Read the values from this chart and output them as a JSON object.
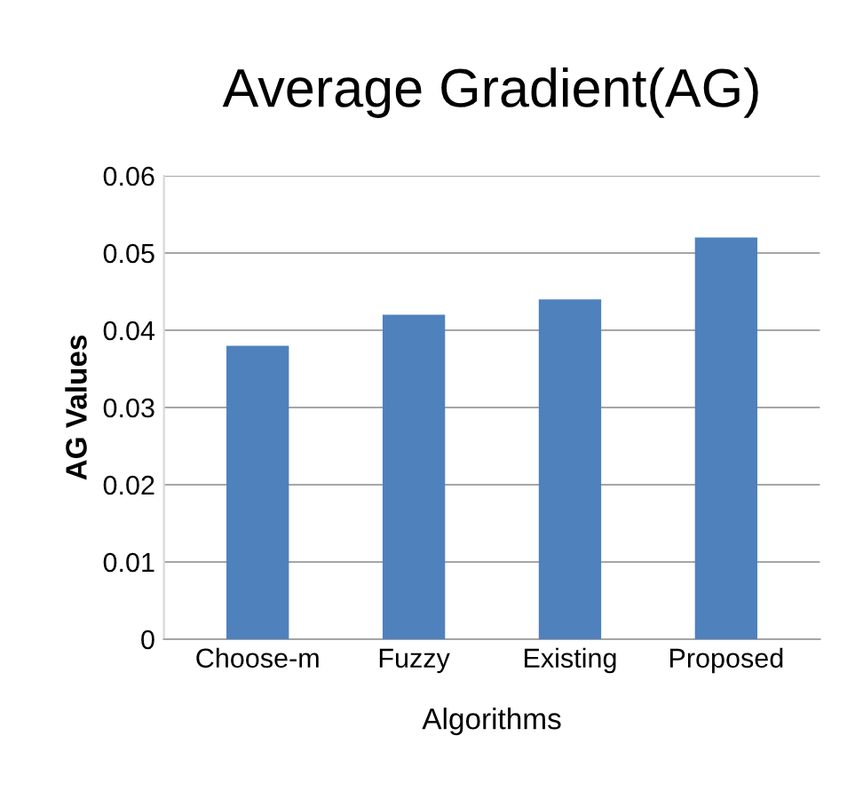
{
  "chart_data": {
    "type": "bar",
    "title": "Average Gradient(AG)",
    "xlabel": "Algorithms",
    "ylabel": "AG Values",
    "categories": [
      "Choose-m",
      "Fuzzy",
      "Existing",
      "Proposed"
    ],
    "values": [
      0.038,
      0.042,
      0.044,
      0.052
    ],
    "color": "#4f81bd",
    "ylim": [
      0,
      0.06
    ],
    "yticks": [
      0,
      0.01,
      0.02,
      0.03,
      0.04,
      0.05,
      0.06
    ],
    "grid": "y",
    "legend": false
  }
}
